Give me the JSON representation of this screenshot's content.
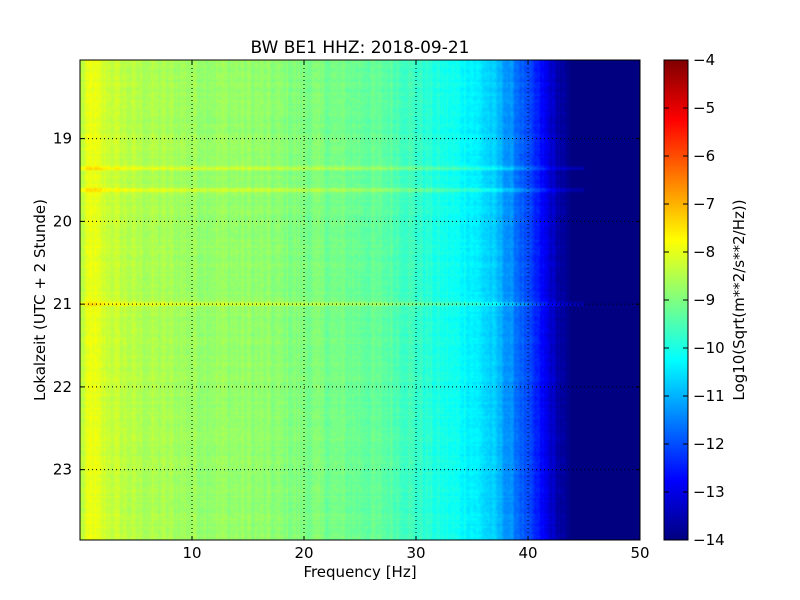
{
  "chart_data": {
    "type": "heatmap",
    "title": "BW BE1 HHZ: 2018-09-21",
    "xlabel": "Frequency [Hz]",
    "ylabel": "Lokalzeit (UTC + 2 Stunde)",
    "xlim": [
      0,
      50
    ],
    "ylim": [
      18.05,
      23.85
    ],
    "y_inverted": true,
    "grid": true,
    "x_ticks": [
      10,
      20,
      30,
      40,
      50
    ],
    "x_tick_labels": [
      "10",
      "20",
      "30",
      "40",
      "50"
    ],
    "y_ticks": [
      19,
      20,
      21,
      22,
      23
    ],
    "y_tick_labels": [
      "19",
      "20",
      "21",
      "22",
      "23"
    ],
    "colormap": "jet",
    "colorbar": {
      "label": "Log10(Sqrt(m**2/s**2/Hz))",
      "range": [
        -14,
        -4
      ],
      "ticks": [
        -4,
        -5,
        -6,
        -7,
        -8,
        -9,
        -10,
        -11,
        -12,
        -13,
        -14
      ],
      "tick_labels": [
        "−4",
        "−5",
        "−6",
        "−7",
        "−8",
        "−9",
        "−10",
        "−11",
        "−12",
        "−13",
        "−14"
      ]
    },
    "spectrum_profile": {
      "frequency_hz": [
        0,
        1,
        2,
        5,
        10,
        15,
        20,
        25,
        28,
        30,
        32,
        35,
        37,
        39,
        41,
        42,
        43,
        44,
        50
      ],
      "log10_amplitude": [
        -8.5,
        -7.9,
        -8.2,
        -8.5,
        -8.7,
        -8.8,
        -9.0,
        -9.2,
        -9.4,
        -9.7,
        -10.0,
        -10.3,
        -10.8,
        -11.6,
        -12.6,
        -13.2,
        -13.7,
        -14.0,
        -14.0
      ]
    },
    "bright_bands": [
      {
        "time_h": 19.36,
        "level_offset": 0.9,
        "max_frequency_hz": 45
      },
      {
        "time_h": 19.62,
        "level_offset": 0.8,
        "max_frequency_hz": 45
      },
      {
        "time_h": 21.0,
        "level_offset": 1.0,
        "max_frequency_hz": 45
      }
    ]
  }
}
